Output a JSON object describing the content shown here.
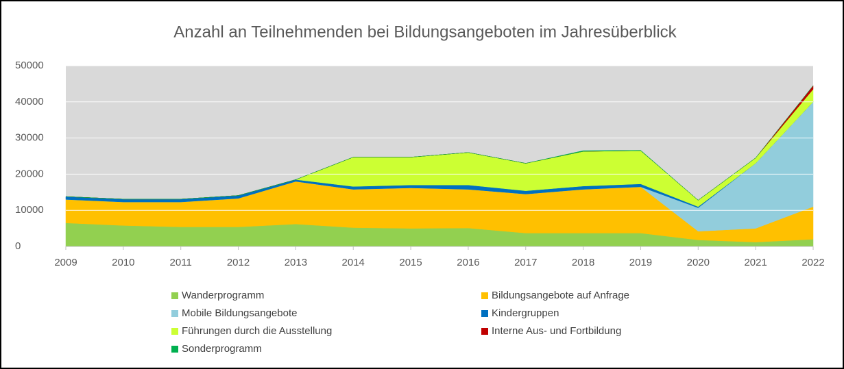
{
  "chart_data": {
    "type": "stacked_area",
    "title": "Anzahl an Teilnehmenden bei Bildungsangeboten im Jahresüberblick",
    "categories": [
      "2009",
      "2010",
      "2011",
      "2012",
      "2013",
      "2014",
      "2015",
      "2016",
      "2017",
      "2018",
      "2019",
      "2020",
      "2021",
      "2022"
    ],
    "series": [
      {
        "name": "Wanderprogramm",
        "color": "#92d050",
        "values": [
          6500,
          5800,
          5400,
          5400,
          6200,
          5200,
          5000,
          5100,
          3700,
          3700,
          3700,
          1800,
          1200,
          2000
        ]
      },
      {
        "name": "Bildungsangebote auf Anfrage",
        "color": "#ffc000",
        "values": [
          6500,
          6500,
          6900,
          7900,
          11800,
          10600,
          11200,
          10700,
          10800,
          12100,
          12800,
          2400,
          3800,
          9000
        ]
      },
      {
        "name": "Mobile Bildungsangebote",
        "color": "#92cddc",
        "values": [
          0,
          0,
          0,
          0,
          0,
          0,
          0,
          0,
          0,
          0,
          0,
          6500,
          18000,
          29000
        ]
      },
      {
        "name": "Kindergruppen",
        "color": "#0070c0",
        "values": [
          800,
          800,
          800,
          800,
          500,
          800,
          800,
          1200,
          900,
          900,
          800,
          300,
          0,
          0
        ]
      },
      {
        "name": "Führungen durch die Ausstellung",
        "color": "#ccff33",
        "values": [
          0,
          0,
          0,
          0,
          0,
          8100,
          7700,
          9000,
          7600,
          9600,
          9200,
          1800,
          1500,
          3500
        ]
      },
      {
        "name": "Interne Aus- und Fortbildung",
        "color": "#c00000",
        "values": [
          0,
          0,
          0,
          0,
          0,
          0,
          0,
          0,
          0,
          0,
          0,
          0,
          0,
          1000
        ]
      },
      {
        "name": "Sonderprogramm",
        "color": "#00b050",
        "values": [
          0,
          0,
          0,
          0,
          0,
          0,
          0,
          0,
          0,
          200,
          100,
          0,
          0,
          0
        ]
      }
    ],
    "ylim": [
      0,
      50000
    ],
    "yticks": [
      0,
      10000,
      20000,
      30000,
      40000,
      50000
    ],
    "grid": true
  }
}
